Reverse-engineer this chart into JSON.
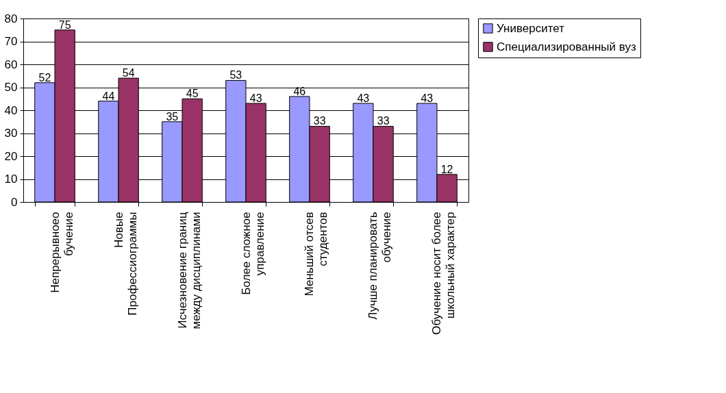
{
  "chart_data": {
    "type": "bar",
    "categories": [
      "Непрерывноео бучение",
      "Новые Профессиограммы",
      "Исчезновение границ между дисциплинами",
      "Более сложное управление",
      "Меньший отсев студентов",
      "Лучше планировать обучение",
      "Обучение носит более школьный характер"
    ],
    "series": [
      {
        "name": "Университет",
        "color": "#9999ff",
        "values": [
          52,
          44,
          35,
          53,
          46,
          43,
          43
        ]
      },
      {
        "name": "Специализированный вуз",
        "color": "#993366",
        "values": [
          75,
          54,
          45,
          43,
          33,
          33,
          12
        ]
      }
    ],
    "ylim": [
      0,
      80
    ],
    "yticks": [
      0,
      10,
      20,
      30,
      40,
      50,
      60,
      70,
      80
    ],
    "grid": "y",
    "legend": "right",
    "data_labels": true
  }
}
